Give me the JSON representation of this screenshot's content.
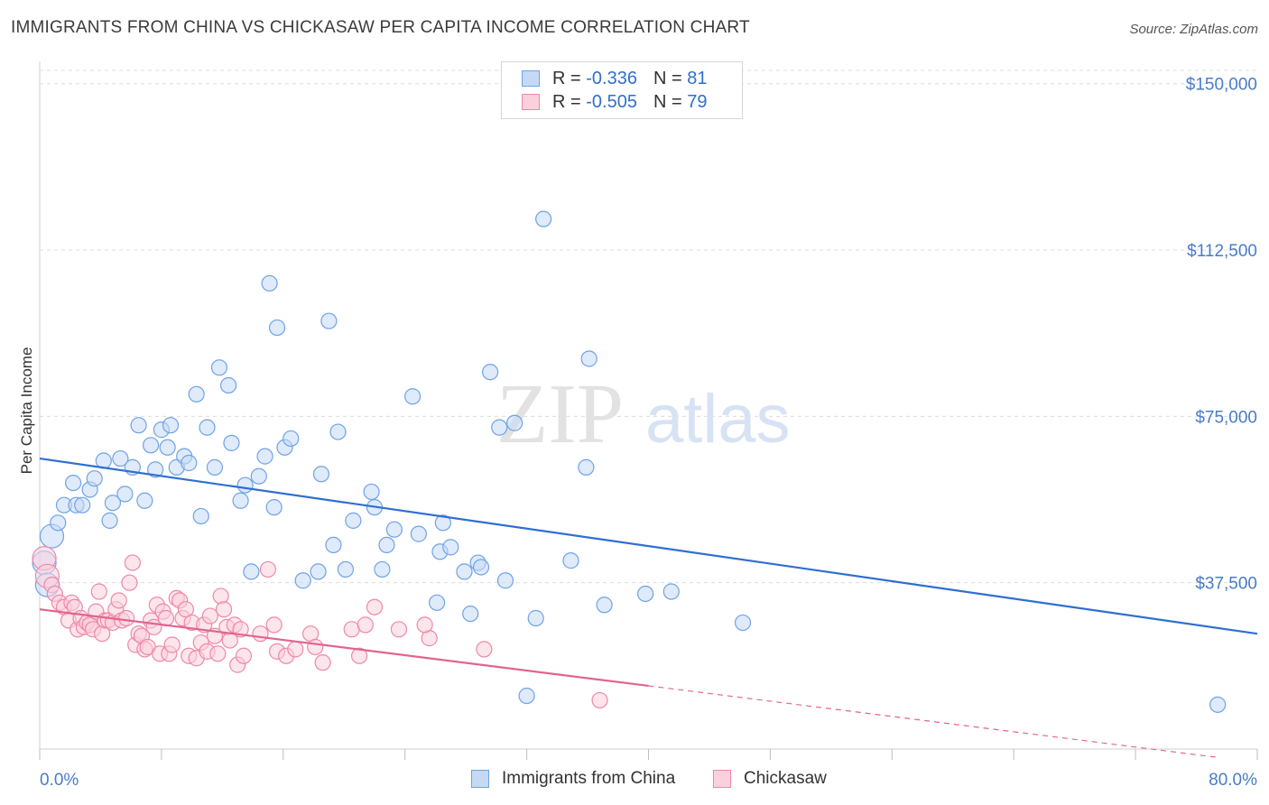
{
  "title": "IMMIGRANTS FROM CHINA VS CHICKASAW PER CAPITA INCOME CORRELATION CHART",
  "source": "Source: ZipAtlas.com",
  "watermark": {
    "zip": "ZIP",
    "atlas": "atlas"
  },
  "legend": {
    "r_label": "R =",
    "n_label": "N =",
    "rows": [
      {
        "r": "-0.336",
        "n": "81",
        "color": "#6fa3e6",
        "fill": "#c5d9f5"
      },
      {
        "r": "-0.505",
        "n": "79",
        "color": "#ee88a8",
        "fill": "#fbd0dd"
      }
    ]
  },
  "bottom_legend": [
    {
      "label": "Immigrants from China",
      "color": "#6fa3e6",
      "fill": "#c5d9f5"
    },
    {
      "label": "Chickasaw",
      "color": "#ee88a8",
      "fill": "#fbd0dd"
    }
  ],
  "chart_data": {
    "type": "scatter",
    "title": "IMMIGRANTS FROM CHINA VS CHICKASAW PER CAPITA INCOME CORRELATION CHART",
    "xlabel": "",
    "ylabel": "Per Capita Income",
    "xlim": [
      0,
      80
    ],
    "ylim": [
      0,
      153000
    ],
    "x_tick_labels": [
      {
        "value": 0,
        "label": "0.0%"
      },
      {
        "value": 80,
        "label": "80.0%"
      }
    ],
    "y_ticks": [
      {
        "value": 37500,
        "label": "$37,500"
      },
      {
        "value": 75000,
        "label": "$75,000"
      },
      {
        "value": 112500,
        "label": "$112,500"
      },
      {
        "value": 150000,
        "label": "$150,000"
      }
    ],
    "series": [
      {
        "name": "Immigrants from China",
        "color": "#6fa3e6",
        "fill": "#c5d9f5",
        "trend": {
          "x": [
            0,
            80
          ],
          "y": [
            65500,
            26000
          ],
          "dashed_from": null
        },
        "points": [
          [
            0.3,
            42000
          ],
          [
            0.5,
            37000
          ],
          [
            0.8,
            48000
          ],
          [
            1.2,
            51000
          ],
          [
            1.6,
            55000
          ],
          [
            2.2,
            60000
          ],
          [
            2.4,
            55000
          ],
          [
            2.8,
            55000
          ],
          [
            3.3,
            58500
          ],
          [
            3.6,
            61000
          ],
          [
            4.2,
            65000
          ],
          [
            4.6,
            51500
          ],
          [
            4.8,
            55500
          ],
          [
            5.3,
            65500
          ],
          [
            5.6,
            57500
          ],
          [
            6.1,
            63500
          ],
          [
            6.5,
            73000
          ],
          [
            6.9,
            56000
          ],
          [
            7.3,
            68500
          ],
          [
            7.6,
            63000
          ],
          [
            8.0,
            72000
          ],
          [
            8.4,
            68000
          ],
          [
            8.6,
            73000
          ],
          [
            9.0,
            63500
          ],
          [
            9.5,
            66000
          ],
          [
            9.8,
            64500
          ],
          [
            10.3,
            80000
          ],
          [
            10.6,
            52500
          ],
          [
            11.0,
            72500
          ],
          [
            11.5,
            63500
          ],
          [
            11.8,
            86000
          ],
          [
            12.4,
            82000
          ],
          [
            12.6,
            69000
          ],
          [
            13.2,
            56000
          ],
          [
            13.5,
            59500
          ],
          [
            13.9,
            40000
          ],
          [
            14.4,
            61500
          ],
          [
            14.8,
            66000
          ],
          [
            15.1,
            105000
          ],
          [
            15.4,
            54500
          ],
          [
            15.6,
            95000
          ],
          [
            16.1,
            68000
          ],
          [
            16.5,
            70000
          ],
          [
            17.3,
            38000
          ],
          [
            18.3,
            40000
          ],
          [
            18.5,
            62000
          ],
          [
            19.0,
            96500
          ],
          [
            19.3,
            46000
          ],
          [
            19.6,
            71500
          ],
          [
            20.1,
            40500
          ],
          [
            20.6,
            51500
          ],
          [
            21.8,
            58000
          ],
          [
            22.0,
            54500
          ],
          [
            22.5,
            40500
          ],
          [
            22.8,
            46000
          ],
          [
            23.3,
            49500
          ],
          [
            24.5,
            79500
          ],
          [
            24.9,
            48500
          ],
          [
            26.1,
            33000
          ],
          [
            26.3,
            44500
          ],
          [
            26.5,
            51000
          ],
          [
            27.0,
            45500
          ],
          [
            27.9,
            40000
          ],
          [
            28.3,
            30500
          ],
          [
            28.8,
            42000
          ],
          [
            29.0,
            41000
          ],
          [
            29.6,
            85000
          ],
          [
            30.2,
            72500
          ],
          [
            30.6,
            38000
          ],
          [
            31.2,
            73500
          ],
          [
            32.0,
            12000
          ],
          [
            32.6,
            29500
          ],
          [
            33.1,
            119500
          ],
          [
            34.9,
            42500
          ],
          [
            35.9,
            63500
          ],
          [
            36.1,
            88000
          ],
          [
            37.1,
            32500
          ],
          [
            39.8,
            35000
          ],
          [
            41.5,
            35500
          ],
          [
            46.2,
            28500
          ],
          [
            77.4,
            10000
          ]
        ]
      },
      {
        "name": "Chickasaw",
        "color": "#ee88a8",
        "fill": "#fbd0dd",
        "trend": {
          "x": [
            0,
            80
          ],
          "y": [
            31500,
            -3000
          ],
          "dashed_from": 40
        },
        "points": [
          [
            0.3,
            43000
          ],
          [
            0.5,
            39000
          ],
          [
            0.8,
            37000
          ],
          [
            1.0,
            35000
          ],
          [
            1.3,
            33000
          ],
          [
            1.6,
            32000
          ],
          [
            1.9,
            29000
          ],
          [
            2.1,
            33000
          ],
          [
            2.3,
            32000
          ],
          [
            2.5,
            27000
          ],
          [
            2.7,
            29500
          ],
          [
            2.9,
            27500
          ],
          [
            3.1,
            28500
          ],
          [
            3.3,
            28000
          ],
          [
            3.5,
            27000
          ],
          [
            3.7,
            31000
          ],
          [
            3.9,
            35500
          ],
          [
            4.1,
            26000
          ],
          [
            4.3,
            29000
          ],
          [
            4.5,
            29000
          ],
          [
            4.8,
            28500
          ],
          [
            5.0,
            31500
          ],
          [
            5.2,
            33500
          ],
          [
            5.4,
            29000
          ],
          [
            5.7,
            29500
          ],
          [
            5.9,
            37500
          ],
          [
            6.1,
            42000
          ],
          [
            6.3,
            23500
          ],
          [
            6.5,
            26000
          ],
          [
            6.7,
            25500
          ],
          [
            6.9,
            22500
          ],
          [
            7.1,
            23000
          ],
          [
            7.3,
            29000
          ],
          [
            7.5,
            27500
          ],
          [
            7.7,
            32500
          ],
          [
            7.9,
            21500
          ],
          [
            8.1,
            31000
          ],
          [
            8.3,
            29500
          ],
          [
            8.5,
            21500
          ],
          [
            8.7,
            23500
          ],
          [
            9.0,
            34000
          ],
          [
            9.2,
            33500
          ],
          [
            9.4,
            29500
          ],
          [
            9.6,
            31500
          ],
          [
            9.8,
            21000
          ],
          [
            10.0,
            28500
          ],
          [
            10.3,
            20500
          ],
          [
            10.6,
            24000
          ],
          [
            10.8,
            28000
          ],
          [
            11.0,
            22000
          ],
          [
            11.2,
            30000
          ],
          [
            11.5,
            25500
          ],
          [
            11.7,
            21500
          ],
          [
            11.9,
            34500
          ],
          [
            12.1,
            31500
          ],
          [
            12.3,
            27500
          ],
          [
            12.5,
            24500
          ],
          [
            12.8,
            28000
          ],
          [
            13.0,
            19000
          ],
          [
            13.2,
            27000
          ],
          [
            13.4,
            21000
          ],
          [
            14.5,
            26000
          ],
          [
            15.0,
            40500
          ],
          [
            15.4,
            28000
          ],
          [
            15.6,
            22000
          ],
          [
            16.2,
            21000
          ],
          [
            16.8,
            22500
          ],
          [
            17.8,
            26000
          ],
          [
            18.1,
            23000
          ],
          [
            18.6,
            19500
          ],
          [
            20.5,
            27000
          ],
          [
            21.0,
            21000
          ],
          [
            21.4,
            28000
          ],
          [
            22.0,
            32000
          ],
          [
            23.6,
            27000
          ],
          [
            25.6,
            25000
          ],
          [
            29.2,
            22500
          ],
          [
            36.8,
            11000
          ],
          [
            25.3,
            28000
          ]
        ]
      }
    ]
  }
}
